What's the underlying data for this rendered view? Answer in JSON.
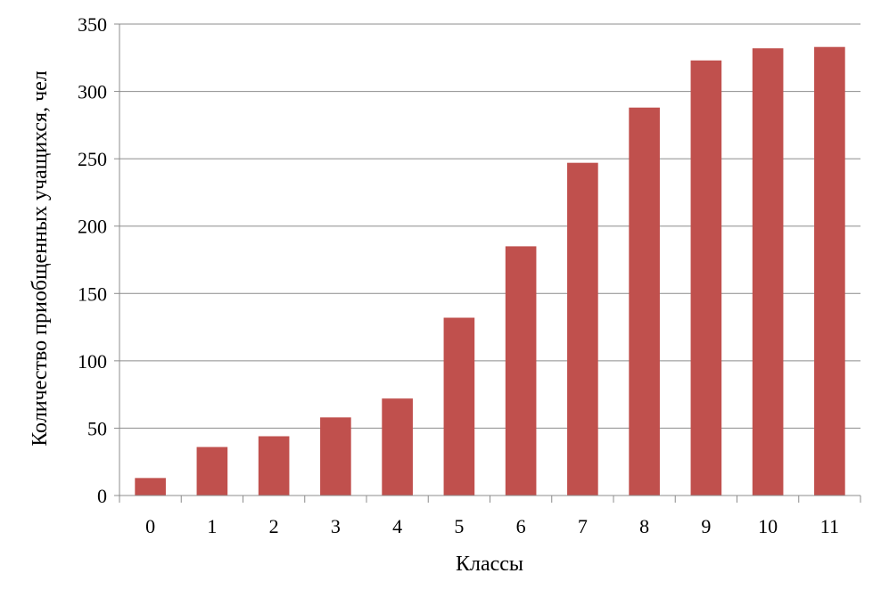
{
  "chart_data": {
    "type": "bar",
    "categories": [
      "0",
      "1",
      "2",
      "3",
      "4",
      "5",
      "6",
      "7",
      "8",
      "9",
      "10",
      "11"
    ],
    "values": [
      13,
      36,
      44,
      58,
      72,
      132,
      185,
      247,
      288,
      323,
      332,
      333
    ],
    "xlabel": "Классы",
    "ylabel": "Количество приобщенных учащихся,  чел",
    "ylim": [
      0,
      350
    ],
    "yticks": [
      "0",
      "50",
      "100",
      "150",
      "200",
      "250",
      "300",
      "350"
    ],
    "grid": true,
    "colors": {
      "bar": "#c0504d",
      "grid": "#8c8c8c",
      "axis": "#8c8c8c"
    }
  }
}
